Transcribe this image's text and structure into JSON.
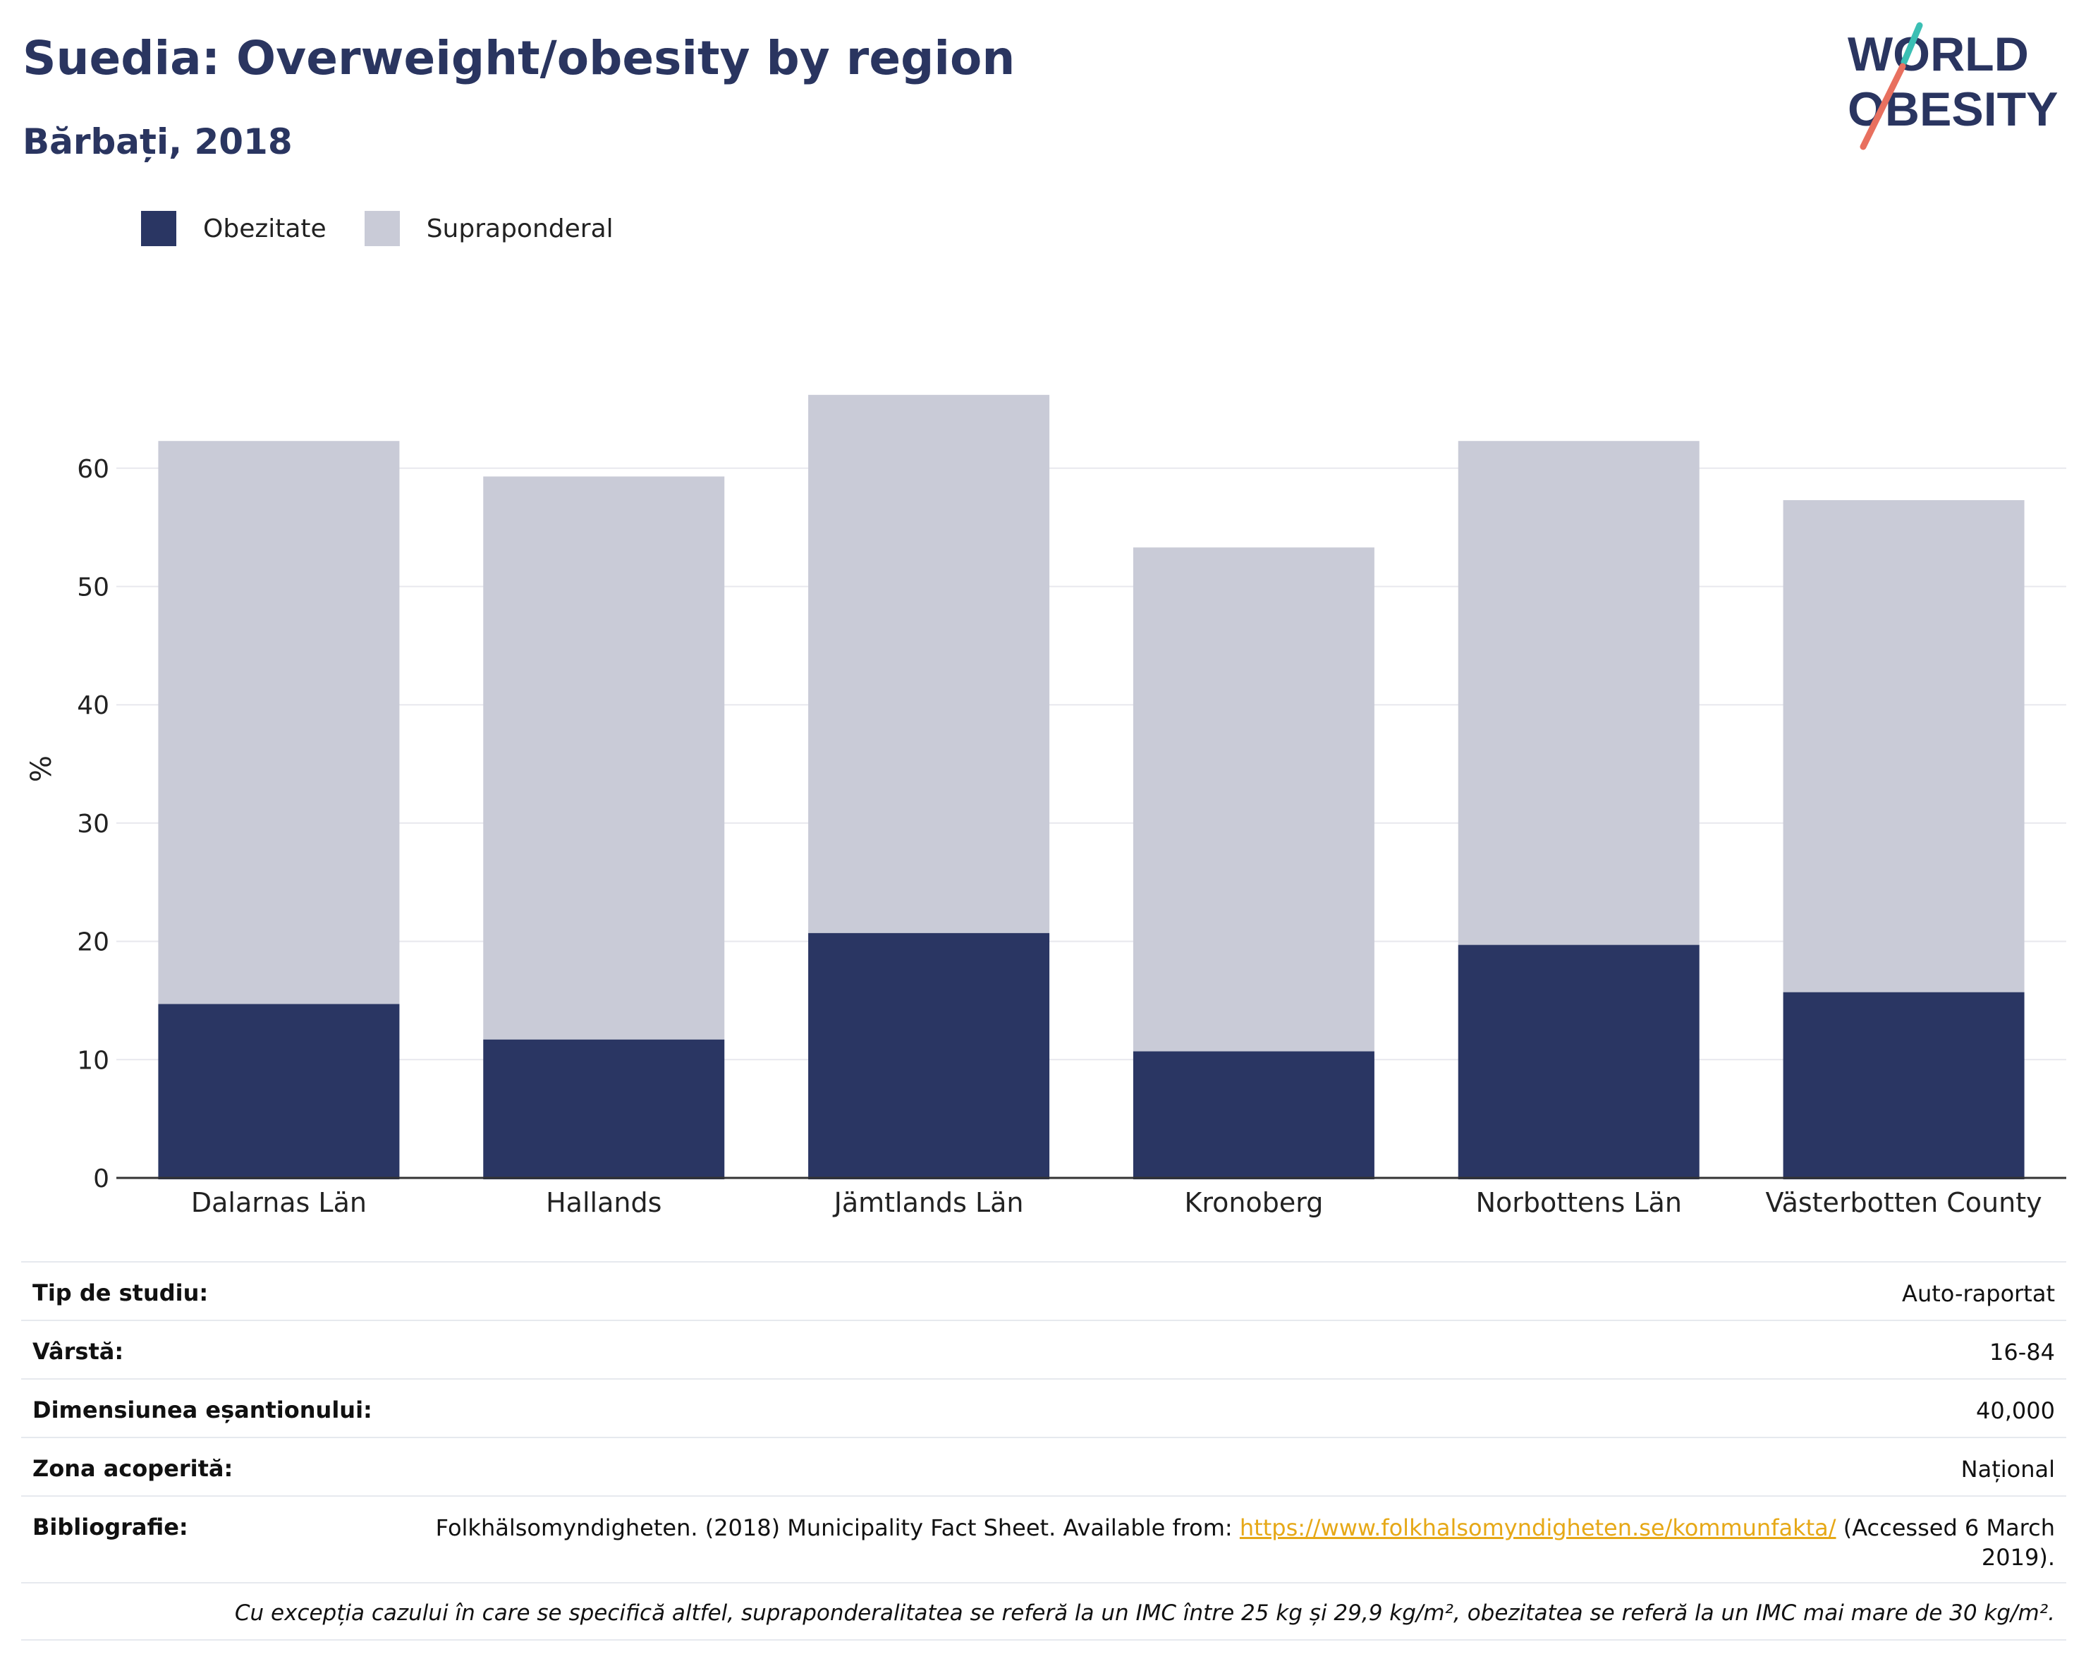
{
  "header": {
    "title": "Suedia: Overweight/obesity by region",
    "subtitle": "Bărbați, 2018"
  },
  "logo": {
    "line1": "WORLD",
    "line2": "OBESITY",
    "icon": "world-obesity-logo"
  },
  "colors": {
    "obesity": "#2a3663",
    "overweight": "#c9cbd7",
    "title": "#2a3560",
    "gridline": "#e8e8ee",
    "axis": "#333333",
    "link": "#e6a817"
  },
  "chart_data": {
    "type": "bar",
    "stacked": true,
    "categories": [
      "Dalarnas Län",
      "Hallands",
      "Jämtlands Län",
      "Kronoberg",
      "Norbottens Län",
      "Västerbotten County"
    ],
    "series": [
      {
        "name": "Obezitate",
        "values": [
          14.7,
          11.7,
          20.7,
          10.7,
          19.7,
          15.7
        ]
      },
      {
        "name": "Supraponderal",
        "values": [
          47.6,
          47.6,
          45.5,
          42.6,
          42.6,
          41.6
        ]
      }
    ],
    "totals": [
      62.3,
      59.3,
      66.2,
      53.3,
      62.3,
      57.3
    ],
    "ylabel": "%",
    "xlabel": "",
    "ylim": [
      0,
      70
    ],
    "yticks": [
      0,
      10,
      20,
      30,
      40,
      50,
      60
    ],
    "grid": true,
    "legend_position": "top-left"
  },
  "info": {
    "rows": [
      {
        "label": "Tip de studiu:",
        "value": "Auto-raportat"
      },
      {
        "label": "Vârstă:",
        "value": "16-84"
      },
      {
        "label": "Dimensiunea eșantionului:",
        "value": "40,000"
      },
      {
        "label": "Zona acoperită:",
        "value": "Național"
      }
    ],
    "bibliography": {
      "label": "Bibliografie:",
      "text_before": "Folkhälsomyndigheten. (2018) Municipality Fact Sheet. Available from: ",
      "link": "https://www.folkhalsomyndigheten.se/kommunfakta/",
      "text_after": " (Accessed 6 March 2019)."
    },
    "note": "Cu excepția cazului în care se specifică altfel, supraponderalitatea se referă la un IMC între 25 kg și 29,9 kg/m², obezitatea se referă la un IMC mai mare de 30 kg/m²."
  }
}
